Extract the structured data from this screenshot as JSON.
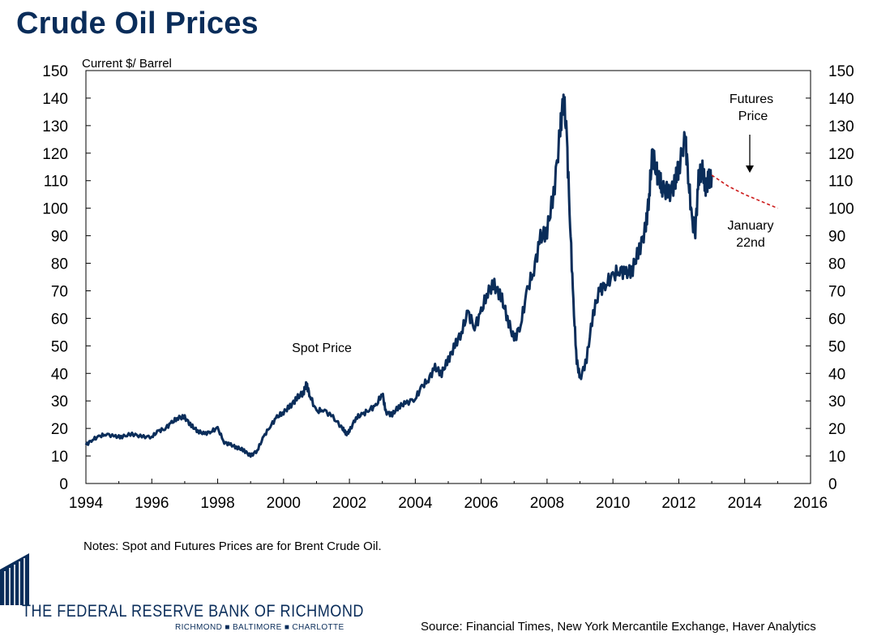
{
  "header": {
    "title": "Crude Oil Prices"
  },
  "chart_data": {
    "type": "line",
    "title": "Crude Oil Prices",
    "ylabel": "Current $/ Barrel",
    "xlabel": "",
    "xlim": [
      1994,
      2016
    ],
    "ylim": [
      0,
      150
    ],
    "x_ticks": [
      1994,
      1996,
      1998,
      2000,
      2002,
      2004,
      2006,
      2008,
      2010,
      2012,
      2014,
      2016
    ],
    "y_ticks": [
      0,
      10,
      20,
      30,
      40,
      50,
      60,
      70,
      80,
      90,
      100,
      110,
      120,
      130,
      140,
      150
    ],
    "y_axis_right": true,
    "grid": false,
    "series": [
      {
        "name": "Spot Price",
        "style": "solid",
        "color": "#0a2d5a",
        "x": [
          1994.0,
          1994.2,
          1994.4,
          1994.6,
          1994.9,
          1995.1,
          1995.4,
          1995.7,
          1996.0,
          1996.2,
          1996.4,
          1996.6,
          1996.8,
          1997.0,
          1997.2,
          1997.4,
          1997.6,
          1997.8,
          1998.0,
          1998.2,
          1998.4,
          1998.6,
          1998.8,
          1999.0,
          1999.2,
          1999.4,
          1999.6,
          1999.8,
          2000.0,
          2000.2,
          2000.4,
          2000.6,
          2000.7,
          2000.8,
          2001.0,
          2001.2,
          2001.5,
          2001.8,
          2001.9,
          2002.0,
          2002.2,
          2002.4,
          2002.6,
          2002.8,
          2003.0,
          2003.1,
          2003.3,
          2003.5,
          2003.7,
          2004.0,
          2004.2,
          2004.4,
          2004.6,
          2004.8,
          2005.0,
          2005.2,
          2005.4,
          2005.6,
          2005.8,
          2006.0,
          2006.2,
          2006.4,
          2006.6,
          2006.8,
          2007.0,
          2007.2,
          2007.4,
          2007.6,
          2007.8,
          2008.0,
          2008.2,
          2008.4,
          2008.5,
          2008.6,
          2008.7,
          2008.8,
          2008.9,
          2009.0,
          2009.2,
          2009.4,
          2009.6,
          2009.8,
          2010.0,
          2010.2,
          2010.4,
          2010.6,
          2010.8,
          2011.0,
          2011.1,
          2011.2,
          2011.3,
          2011.4,
          2011.5,
          2011.7,
          2011.9,
          2012.0,
          2012.2,
          2012.3,
          2012.4,
          2012.5,
          2012.6,
          2012.7,
          2012.8,
          2012.9,
          2013.0
        ],
        "values": [
          14,
          16,
          17,
          18,
          17,
          17,
          18,
          17,
          17,
          19,
          20,
          22,
          24,
          24,
          21,
          19,
          18,
          19,
          20,
          15,
          14,
          13,
          12,
          10,
          12,
          17,
          21,
          24,
          26,
          28,
          31,
          33,
          36,
          32,
          26,
          27,
          24,
          20,
          18,
          19,
          24,
          25,
          27,
          28,
          33,
          26,
          25,
          28,
          29,
          31,
          35,
          38,
          42,
          40,
          45,
          50,
          55,
          62,
          57,
          62,
          70,
          72,
          68,
          60,
          52,
          58,
          70,
          78,
          89,
          92,
          105,
          128,
          141,
          125,
          95,
          65,
          45,
          38,
          45,
          62,
          70,
          73,
          75,
          78,
          76,
          78,
          85,
          93,
          105,
          120,
          115,
          110,
          108,
          105,
          110,
          115,
          125,
          110,
          95,
          92,
          110,
          115,
          108,
          110,
          112
        ]
      },
      {
        "name": "Futures Price",
        "style": "dashed",
        "color": "#cc1a1a",
        "x": [
          2013.0,
          2013.5,
          2014.0,
          2014.5,
          2015.0
        ],
        "values": [
          112,
          108,
          105,
          102.5,
          100
        ]
      }
    ],
    "annotations": [
      {
        "text": "Spot Price"
      },
      {
        "text": "Futures Price",
        "line1": "Futures",
        "line2": "Price",
        "arrow": "down"
      },
      {
        "text": "January 22nd",
        "line1": "January",
        "line2": "22nd"
      }
    ]
  },
  "notes": "Notes: Spot and Futures Prices are for Brent Crude Oil.",
  "source": "Source: Financial Times, New York Mercantile Exchange, Haver Analytics",
  "branding": {
    "name": "THE FEDERAL RESERVE BANK OF RICHMOND",
    "cities": "RICHMOND ■ BALTIMORE ■ CHARLOTTE",
    "color": "#0a2d5a"
  }
}
